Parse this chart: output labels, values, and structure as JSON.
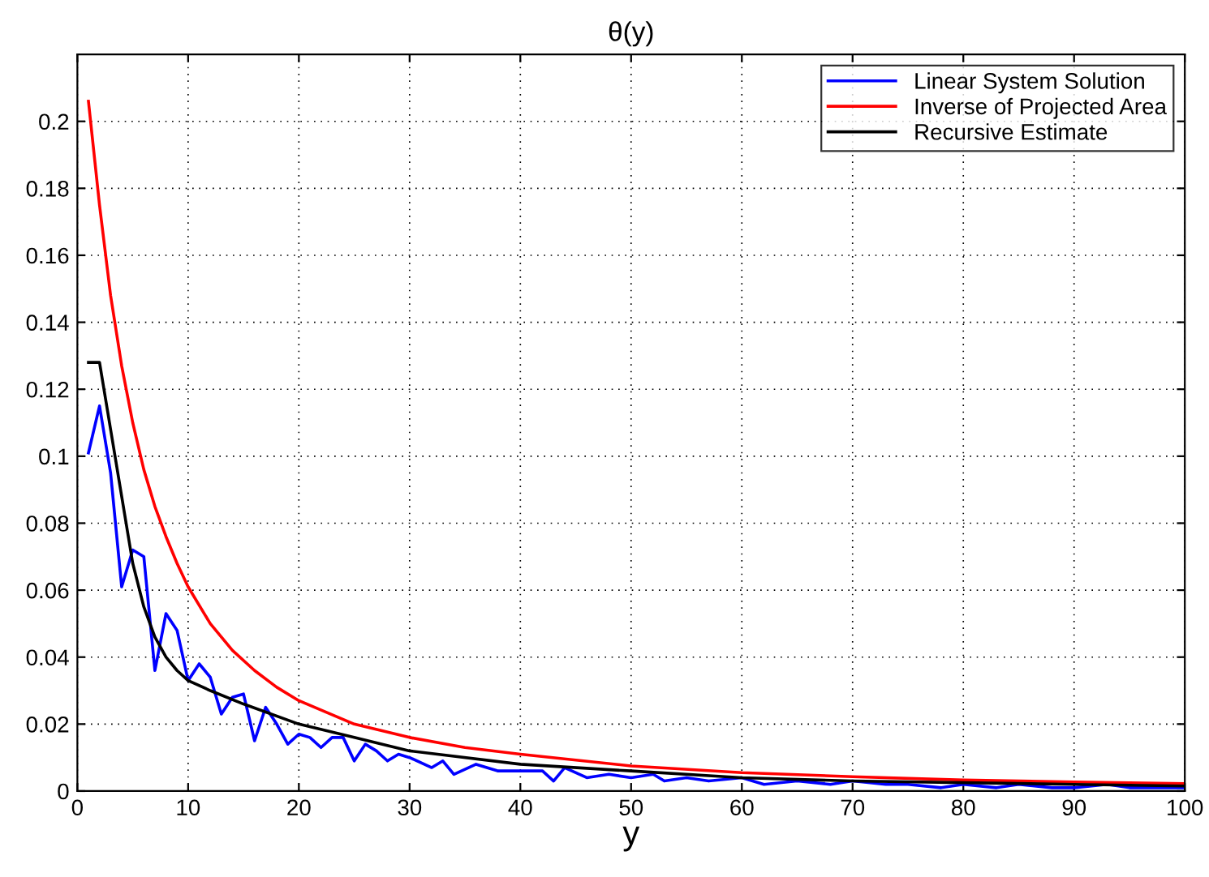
{
  "chart_data": {
    "type": "line",
    "title": "θ(y)",
    "xlabel": "y",
    "xlim": [
      0,
      100
    ],
    "ylim": [
      0,
      0.22
    ],
    "xticks": [
      0,
      10,
      20,
      30,
      40,
      50,
      60,
      70,
      80,
      90,
      100
    ],
    "yticks": [
      0,
      0.02,
      0.04,
      0.06,
      0.08,
      0.1,
      0.12,
      0.14,
      0.16,
      0.18,
      0.2
    ],
    "grid": true,
    "legend": "top right",
    "line_style": "solid",
    "series": [
      {
        "name": "Linear System Solution",
        "color": "#0000ff",
        "x": [
          1,
          2,
          3,
          4,
          5,
          6,
          7,
          8,
          9,
          10,
          11,
          12,
          13,
          14,
          15,
          16,
          17,
          18,
          19,
          20,
          21,
          22,
          23,
          24,
          25,
          26,
          27,
          28,
          29,
          30,
          32,
          33,
          34,
          36,
          38,
          40,
          42,
          43,
          44,
          46,
          48,
          50,
          52,
          53,
          55,
          57,
          60,
          62,
          65,
          68,
          70,
          73,
          75,
          78,
          80,
          83,
          85,
          88,
          90,
          93,
          95,
          98,
          100
        ],
        "values": [
          0.101,
          0.115,
          0.095,
          0.061,
          0.072,
          0.07,
          0.036,
          0.053,
          0.048,
          0.033,
          0.038,
          0.034,
          0.023,
          0.028,
          0.029,
          0.015,
          0.025,
          0.02,
          0.014,
          0.017,
          0.016,
          0.013,
          0.016,
          0.016,
          0.009,
          0.014,
          0.012,
          0.009,
          0.011,
          0.01,
          0.007,
          0.009,
          0.005,
          0.008,
          0.006,
          0.006,
          0.006,
          0.003,
          0.007,
          0.004,
          0.005,
          0.004,
          0.005,
          0.003,
          0.004,
          0.003,
          0.004,
          0.002,
          0.003,
          0.002,
          0.003,
          0.002,
          0.002,
          0.001,
          0.002,
          0.001,
          0.002,
          0.001,
          0.001,
          0.002,
          0.001,
          0.001,
          0.001
        ]
      },
      {
        "name": "Inverse of Projected Area",
        "color": "#ff0000",
        "x": [
          1,
          2,
          3,
          4,
          5,
          6,
          7,
          8,
          9,
          10,
          12,
          14,
          16,
          18,
          20,
          25,
          30,
          35,
          40,
          50,
          60,
          70,
          80,
          90,
          100
        ],
        "values": [
          0.206,
          0.175,
          0.148,
          0.127,
          0.11,
          0.096,
          0.085,
          0.076,
          0.068,
          0.061,
          0.05,
          0.042,
          0.036,
          0.031,
          0.027,
          0.02,
          0.016,
          0.013,
          0.011,
          0.0075,
          0.0055,
          0.0043,
          0.0033,
          0.0027,
          0.0022
        ]
      },
      {
        "name": "Recursive Estimate",
        "color": "#000000",
        "x": [
          1,
          2,
          3,
          4,
          5,
          6,
          7,
          8,
          9,
          10,
          12,
          15,
          20,
          25,
          30,
          40,
          50,
          60,
          70,
          80,
          90,
          100
        ],
        "values": [
          0.128,
          0.128,
          0.108,
          0.088,
          0.068,
          0.055,
          0.046,
          0.04,
          0.036,
          0.033,
          0.03,
          0.026,
          0.02,
          0.016,
          0.012,
          0.008,
          0.006,
          0.004,
          0.003,
          0.0025,
          0.002,
          0.0015
        ]
      }
    ]
  }
}
